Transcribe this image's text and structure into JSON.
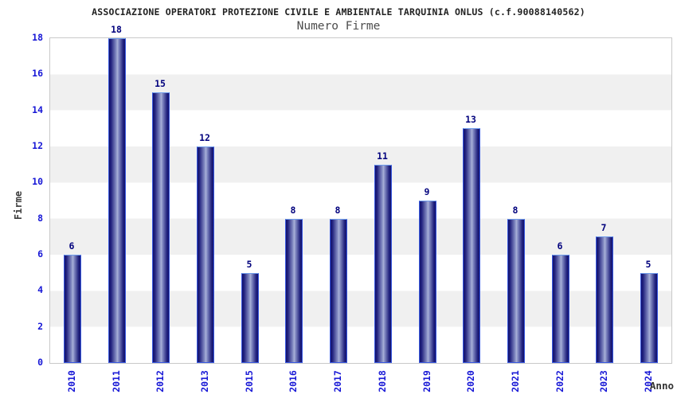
{
  "header": {
    "title": "ASSOCIAZIONE OPERATORI PROTEZIONE CIVILE E AMBIENTALE TARQUINIA ONLUS (c.f.90088140562)",
    "subtitle": "Numero Firme"
  },
  "colors": {
    "tick_label": "#1717d6",
    "value_label": "#00007d",
    "bar_dark": "#12126e",
    "bar_light": "#aab2d8",
    "bar_border": "#3a5ae0",
    "band_gray": "#f0f0f0",
    "plot_border": "#c9c9c9",
    "title_text": "#222222",
    "subtitle_text": "#4d4d4d",
    "axis_title_text": "#3d3d3d"
  },
  "chart_data": {
    "type": "bar",
    "title": "ASSOCIAZIONE OPERATORI PROTEZIONE CIVILE E AMBIENTALE TARQUINIA ONLUS (c.f.90088140562)",
    "subtitle": "Numero Firme",
    "categories": [
      "2010",
      "2011",
      "2012",
      "2013",
      "2015",
      "2016",
      "2017",
      "2018",
      "2019",
      "2020",
      "2021",
      "2022",
      "2023",
      "2024"
    ],
    "values": [
      6,
      18,
      15,
      12,
      5,
      8,
      8,
      11,
      9,
      13,
      8,
      6,
      7,
      5
    ],
    "xlabel": "Anno",
    "ylabel": "Firme",
    "ylim": [
      0,
      18
    ],
    "yticks": [
      0,
      2,
      4,
      6,
      8,
      10,
      12,
      14,
      16,
      18
    ],
    "grid": "horizontal-bands-every-2-units",
    "legend": "none",
    "bar_labels_shown": true
  }
}
